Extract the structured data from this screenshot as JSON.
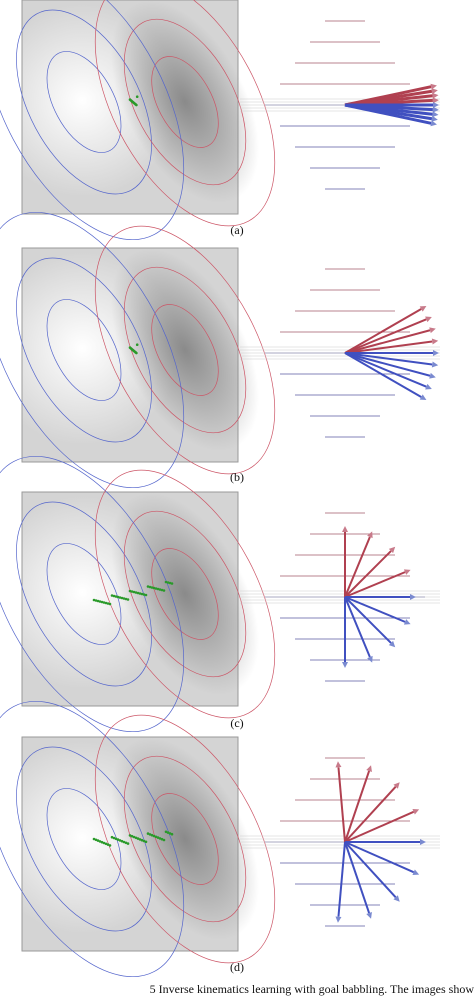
{
  "panels": [
    {
      "label": "(a)"
    },
    {
      "label": "(b)"
    },
    {
      "label": "(c)"
    },
    {
      "label": "(d)"
    }
  ],
  "caption": "5    Inverse kinematics learning with goal babbling. The images show"
}
